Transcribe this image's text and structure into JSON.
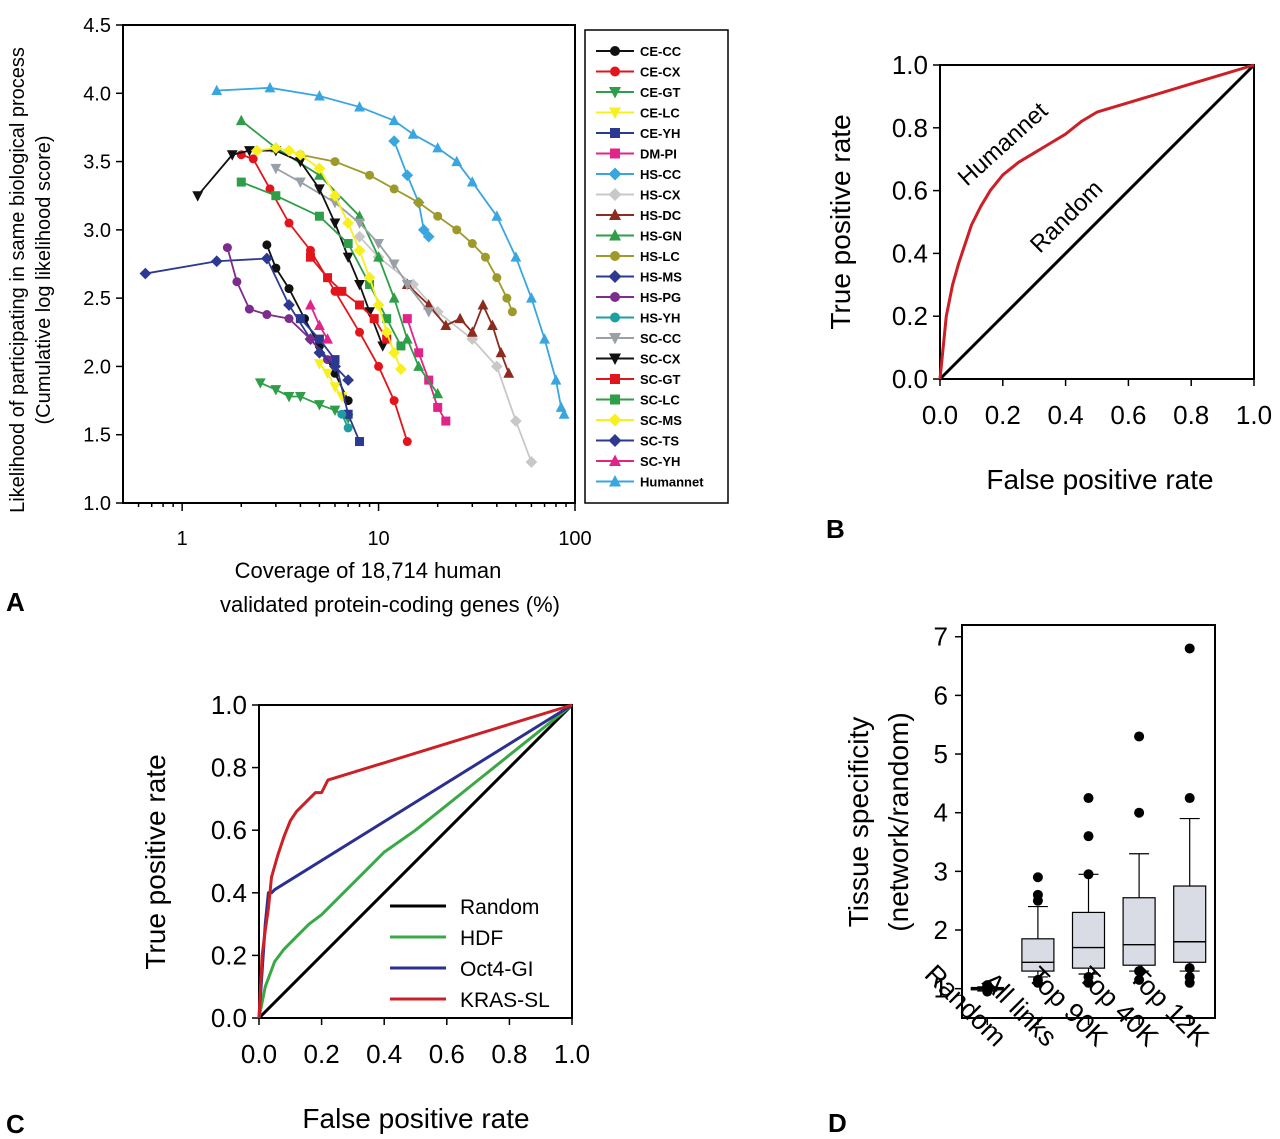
{
  "panel_labels": {
    "a": "A",
    "b": "B",
    "c": "C",
    "d": "D"
  },
  "chart_data": [
    {
      "id": "A",
      "type": "line",
      "xscale": "log",
      "xlabel_line1": "Coverage of 18,714 human",
      "xlabel_line2": "validated protein-coding genes (%)",
      "ylabel_line1": "Likelihood of participating in same biological process",
      "ylabel_line2": "(Cumulative log likelihood score)",
      "xlim": [
        0.5,
        100
      ],
      "ylim": [
        1.0,
        4.5
      ],
      "xticks": [
        1,
        10,
        100
      ],
      "xtick_labels": [
        "1",
        "10",
        "100"
      ],
      "yticks": [
        1.0,
        1.5,
        2.0,
        2.5,
        3.0,
        3.5,
        4.0,
        4.5
      ],
      "ytick_labels": [
        "1.0",
        "1.5",
        "2.0",
        "2.5",
        "3.0",
        "3.5",
        "4.0",
        "4.5"
      ],
      "series": [
        {
          "name": "CE-CC",
          "color": "#111111",
          "marker": "circle",
          "x": [
            2.7,
            3.0,
            3.5,
            4.2,
            5.0,
            6.0,
            7.0
          ],
          "y": [
            2.89,
            2.72,
            2.57,
            2.35,
            2.15,
            1.95,
            1.75
          ]
        },
        {
          "name": "CE-CX",
          "color": "#e3151c",
          "marker": "circle",
          "x": [
            2.0,
            2.3,
            2.8,
            3.5,
            4.5,
            6.0,
            8.0,
            10.0,
            12.0,
            14.0
          ],
          "y": [
            3.55,
            3.52,
            3.3,
            3.05,
            2.85,
            2.55,
            2.25,
            2.0,
            1.75,
            1.45
          ]
        },
        {
          "name": "CE-GT",
          "color": "#2e9e48",
          "marker": "tri-down",
          "x": [
            2.5,
            3.0,
            3.5,
            4.0,
            5.0,
            6.0,
            7.0
          ],
          "y": [
            1.88,
            1.83,
            1.78,
            1.78,
            1.72,
            1.68,
            1.62
          ]
        },
        {
          "name": "CE-LC",
          "color": "#f7ef1e",
          "marker": "tri-down",
          "x": [
            5.0,
            5.5,
            6.0,
            6.5
          ],
          "y": [
            2.02,
            1.95,
            1.85,
            1.78
          ]
        },
        {
          "name": "CE-YH",
          "color": "#2b3990",
          "marker": "square",
          "x": [
            4.0,
            5.0,
            6.0,
            7.0,
            8.0
          ],
          "y": [
            2.35,
            2.2,
            2.05,
            1.65,
            1.45
          ]
        },
        {
          "name": "DM-PI",
          "color": "#e0248a",
          "marker": "square",
          "x": [
            14.0,
            16.0,
            18.0,
            20.0,
            22.0
          ],
          "y": [
            2.35,
            2.1,
            1.9,
            1.7,
            1.6
          ]
        },
        {
          "name": "HS-CC",
          "color": "#3aa6e0",
          "marker": "diamond",
          "x": [
            12.0,
            14.0,
            16.0,
            17.0,
            18.0
          ],
          "y": [
            3.65,
            3.4,
            3.2,
            3.0,
            2.95
          ]
        },
        {
          "name": "HS-CX",
          "color": "#c8c8c8",
          "marker": "diamond",
          "x": [
            8.0,
            10.0,
            15.0,
            20.0,
            30.0,
            40.0,
            50.0,
            60.0
          ],
          "y": [
            2.95,
            2.8,
            2.6,
            2.4,
            2.2,
            2.0,
            1.6,
            1.3
          ]
        },
        {
          "name": "HS-DC",
          "color": "#8b2c1e",
          "marker": "tri-up",
          "x": [
            14.0,
            18.0,
            22.0,
            26.0,
            30.0,
            34.0,
            38.0,
            42.0,
            46.0
          ],
          "y": [
            2.6,
            2.45,
            2.3,
            2.35,
            2.25,
            2.45,
            2.3,
            2.1,
            1.95
          ]
        },
        {
          "name": "HS-GN",
          "color": "#2e9e48",
          "marker": "tri-up",
          "x": [
            2.0,
            3.0,
            5.0,
            8.0,
            10.0,
            12.0,
            14.0,
            16.0,
            20.0
          ],
          "y": [
            3.8,
            3.6,
            3.4,
            3.1,
            2.8,
            2.5,
            2.2,
            2.0,
            1.8
          ]
        },
        {
          "name": "HS-LC",
          "color": "#9d9a2a",
          "marker": "circle",
          "x": [
            4.0,
            6.0,
            9.0,
            12.0,
            16.0,
            20.0,
            25.0,
            30.0,
            35.0,
            40.0,
            45.0,
            48.0
          ],
          "y": [
            3.55,
            3.5,
            3.4,
            3.3,
            3.2,
            3.1,
            3.0,
            2.9,
            2.8,
            2.65,
            2.5,
            2.4
          ]
        },
        {
          "name": "HS-MS",
          "color": "#2b3990",
          "marker": "diamond",
          "x": [
            0.65,
            1.5,
            2.7,
            3.5,
            4.5,
            6.0
          ],
          "y": [
            2.68,
            2.77,
            2.79,
            2.45,
            2.2,
            2.0
          ]
        },
        {
          "name": "HS-PG",
          "color": "#7b2c8c",
          "marker": "circle",
          "x": [
            1.7,
            1.9,
            2.2,
            2.7,
            3.5,
            4.5,
            5.5
          ],
          "y": [
            2.87,
            2.62,
            2.42,
            2.38,
            2.35,
            2.2,
            2.05
          ]
        },
        {
          "name": "HS-YH",
          "color": "#1e9ea0",
          "marker": "circle",
          "x": [
            6.5,
            7.0
          ],
          "y": [
            1.65,
            1.55
          ]
        },
        {
          "name": "SC-CC",
          "color": "#9aa0a8",
          "marker": "tri-down",
          "x": [
            3.0,
            4.0,
            6.0,
            8.0,
            10.0,
            12.0,
            14.0,
            18.0
          ],
          "y": [
            3.45,
            3.35,
            3.2,
            3.05,
            2.9,
            2.75,
            2.6,
            2.4
          ]
        },
        {
          "name": "SC-CX",
          "color": "#111111",
          "marker": "tri-down",
          "x": [
            1.2,
            1.8,
            2.2,
            3.0,
            4.0,
            5.0,
            6.0,
            7.0,
            8.0,
            9.0,
            10.5
          ],
          "y": [
            3.25,
            3.55,
            3.58,
            3.58,
            3.5,
            3.3,
            3.05,
            2.8,
            2.6,
            2.4,
            2.15
          ]
        },
        {
          "name": "SC-GT",
          "color": "#e3151c",
          "marker": "square",
          "x": [
            4.5,
            5.5,
            6.5,
            8.0,
            9.5,
            11.0
          ],
          "y": [
            2.8,
            2.65,
            2.55,
            2.45,
            2.35,
            2.2
          ]
        },
        {
          "name": "SC-LC",
          "color": "#2e9e48",
          "marker": "square",
          "x": [
            2.0,
            3.0,
            5.0,
            7.0,
            9.0,
            11.0,
            13.0
          ],
          "y": [
            3.35,
            3.25,
            3.1,
            2.9,
            2.6,
            2.35,
            2.15
          ]
        },
        {
          "name": "SC-MS",
          "color": "#f7ef1e",
          "marker": "diamond",
          "x": [
            2.4,
            3.0,
            3.5,
            4.0,
            5.0,
            6.0,
            7.0,
            8.0,
            9.0,
            10.0,
            11.0,
            12.0,
            13.0
          ],
          "y": [
            3.58,
            3.6,
            3.58,
            3.55,
            3.45,
            3.25,
            3.05,
            2.85,
            2.65,
            2.45,
            2.25,
            2.1,
            1.98
          ]
        },
        {
          "name": "SC-TS",
          "color": "#2b3990",
          "marker": "diamond",
          "x": [
            5.0,
            6.0,
            7.0
          ],
          "y": [
            2.1,
            2.0,
            1.9
          ]
        },
        {
          "name": "SC-YH",
          "color": "#e0248a",
          "marker": "tri-up",
          "x": [
            4.5,
            5.0,
            5.5
          ],
          "y": [
            2.45,
            2.3,
            2.2
          ]
        },
        {
          "name": "Humannet",
          "color": "#3aa6e0",
          "marker": "tri-up",
          "x": [
            1.5,
            2.8,
            5.0,
            8.0,
            12.0,
            15.0,
            20.0,
            25.0,
            30.0,
            40.0,
            50.0,
            60.0,
            70.0,
            80.0,
            85.0,
            88.0
          ],
          "y": [
            4.02,
            4.04,
            3.98,
            3.9,
            3.8,
            3.7,
            3.6,
            3.5,
            3.35,
            3.1,
            2.8,
            2.5,
            2.2,
            1.9,
            1.7,
            1.65
          ]
        }
      ]
    },
    {
      "id": "B",
      "type": "line",
      "xlabel": "False positive rate",
      "ylabel": "True positive rate",
      "xlim": [
        0,
        1
      ],
      "ylim": [
        0,
        1
      ],
      "xticks": [
        0,
        0.2,
        0.4,
        0.6,
        0.8,
        1.0
      ],
      "xtick_labels": [
        "0.0",
        "0.2",
        "0.4",
        "0.6",
        "0.8",
        "1.0"
      ],
      "yticks": [
        0,
        0.2,
        0.4,
        0.6,
        0.8,
        1.0
      ],
      "ytick_labels": [
        "0.0",
        "0.2",
        "0.4",
        "0.6",
        "0.8",
        "1.0"
      ],
      "annotations": [
        "Humannet",
        "Random"
      ],
      "series": [
        {
          "name": "Random",
          "color": "#000000",
          "x": [
            0,
            1
          ],
          "y": [
            0,
            1
          ]
        },
        {
          "name": "Humannet",
          "color": "#cc1f26",
          "x": [
            0,
            0.01,
            0.02,
            0.04,
            0.06,
            0.08,
            0.1,
            0.13,
            0.16,
            0.2,
            0.25,
            0.3,
            0.35,
            0.4,
            0.45,
            0.5,
            0.6,
            0.7,
            0.8,
            0.9,
            1.0
          ],
          "y": [
            0,
            0.1,
            0.2,
            0.3,
            0.37,
            0.43,
            0.49,
            0.55,
            0.6,
            0.65,
            0.69,
            0.72,
            0.75,
            0.78,
            0.82,
            0.85,
            0.88,
            0.91,
            0.94,
            0.97,
            1.0
          ]
        }
      ]
    },
    {
      "id": "C",
      "type": "line",
      "xlabel": "False positive rate",
      "ylabel": "True positive rate",
      "xlim": [
        0,
        1
      ],
      "ylim": [
        0,
        1
      ],
      "xticks": [
        0,
        0.2,
        0.4,
        0.6,
        0.8,
        1.0
      ],
      "xtick_labels": [
        "0.0",
        "0.2",
        "0.4",
        "0.6",
        "0.8",
        "1.0"
      ],
      "yticks": [
        0,
        0.2,
        0.4,
        0.6,
        0.8,
        1.0
      ],
      "ytick_labels": [
        "0.0",
        "0.2",
        "0.4",
        "0.6",
        "0.8",
        "1.0"
      ],
      "series": [
        {
          "name": "Random",
          "color": "#000000",
          "x": [
            0,
            1
          ],
          "y": [
            0,
            1
          ]
        },
        {
          "name": "HDF",
          "color": "#3aa845",
          "x": [
            0,
            0.02,
            0.05,
            0.08,
            0.12,
            0.16,
            0.2,
            0.25,
            0.3,
            0.35,
            0.4,
            0.5,
            0.6,
            0.7,
            0.8,
            0.9,
            1.0
          ],
          "y": [
            0,
            0.1,
            0.18,
            0.22,
            0.26,
            0.3,
            0.33,
            0.38,
            0.43,
            0.48,
            0.53,
            0.6,
            0.68,
            0.76,
            0.84,
            0.92,
            1.0
          ]
        },
        {
          "name": "Oct4-GI",
          "color": "#2b2f8f",
          "x": [
            0,
            0.01,
            0.02,
            0.03,
            0.04,
            0.05,
            1.0
          ],
          "y": [
            0,
            0.15,
            0.3,
            0.4,
            0.4,
            0.41,
            1.0
          ]
        },
        {
          "name": "KRAS-SL",
          "color": "#cc1f26",
          "x": [
            0,
            0.01,
            0.02,
            0.03,
            0.04,
            0.06,
            0.08,
            0.1,
            0.12,
            0.14,
            0.16,
            0.18,
            0.2,
            0.22,
            1.0
          ],
          "y": [
            0,
            0.2,
            0.28,
            0.35,
            0.45,
            0.52,
            0.58,
            0.63,
            0.66,
            0.68,
            0.7,
            0.72,
            0.72,
            0.76,
            1.0
          ]
        }
      ]
    },
    {
      "id": "D",
      "type": "box",
      "ylabel_line1": "Tissue specificity",
      "ylabel_line2": "(network/random)",
      "ylim": [
        0.5,
        7.2
      ],
      "yticks": [
        1,
        2,
        3,
        4,
        5,
        6,
        7
      ],
      "ytick_labels": [
        "1",
        "2",
        "3",
        "4",
        "5",
        "6",
        "7"
      ],
      "categories": [
        "Random",
        "All links",
        "Top 90K",
        "Top 40K",
        "Top 12K"
      ],
      "boxes": [
        {
          "whisker_low": 0.96,
          "q1": 0.98,
          "median": 1.0,
          "q3": 1.02,
          "whisker_high": 1.03,
          "outliers": [
            0.95,
            0.97,
            1.05,
            1.06
          ]
        },
        {
          "whisker_low": 1.2,
          "q1": 1.3,
          "median": 1.45,
          "q3": 1.85,
          "whisker_high": 2.4,
          "outliers": [
            1.1,
            1.15,
            2.5,
            2.6,
            2.9
          ]
        },
        {
          "whisker_low": 1.25,
          "q1": 1.35,
          "median": 1.7,
          "q3": 2.3,
          "whisker_high": 2.95,
          "outliers": [
            1.1,
            1.2,
            2.95,
            3.6,
            4.25
          ]
        },
        {
          "whisker_low": 1.3,
          "q1": 1.4,
          "median": 1.75,
          "q3": 2.55,
          "whisker_high": 3.3,
          "outliers": [
            1.15,
            1.3,
            4.0,
            5.3
          ]
        },
        {
          "whisker_low": 1.3,
          "q1": 1.45,
          "median": 1.8,
          "q3": 2.75,
          "whisker_high": 3.9,
          "outliers": [
            1.1,
            1.2,
            1.35,
            4.25,
            6.8
          ]
        }
      ]
    }
  ]
}
